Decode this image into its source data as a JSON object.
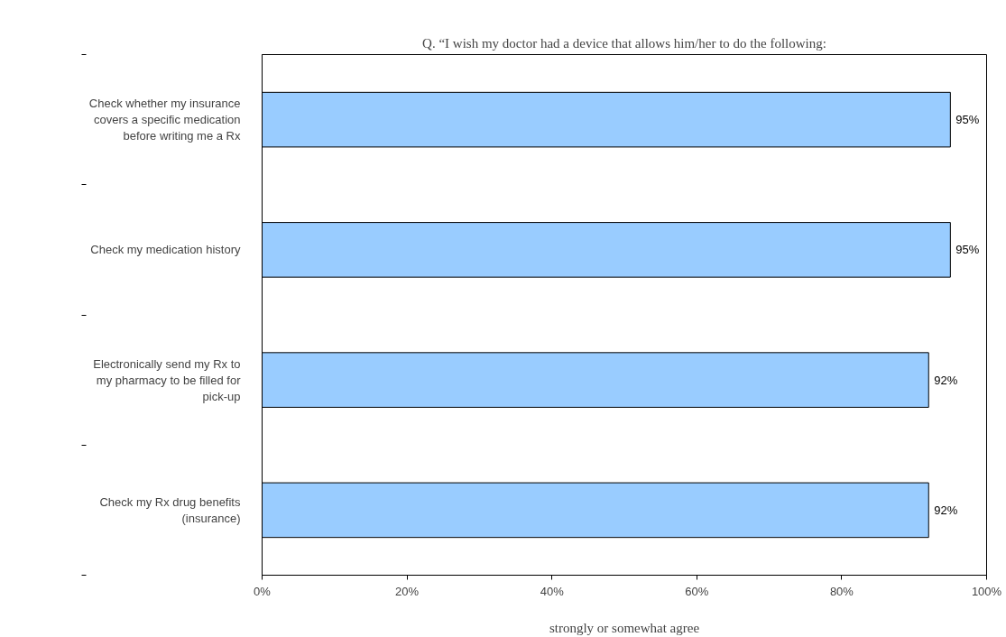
{
  "chart_data": {
    "type": "bar",
    "orientation": "horizontal",
    "title": "Q. “I wish my doctor had a device that allows him/her to do the following:",
    "xlabel": "strongly or somewhat agree",
    "categories": [
      "Check whether my insurance covers a specific medication before writing me a Rx",
      "Check my medication history",
      "Electronically send my Rx to my pharmacy to be filled for pick-up",
      "Check my Rx drug benefits (insurance)"
    ],
    "values": [
      95,
      95,
      92,
      92
    ],
    "value_labels": [
      "95%",
      "95%",
      "92%",
      "92%"
    ],
    "color": "#99ccff",
    "xlim": [
      0,
      100
    ],
    "xticks": [
      {
        "value": 0,
        "label": "0%"
      },
      {
        "value": 20,
        "label": "20%"
      },
      {
        "value": 40,
        "label": "40%"
      },
      {
        "value": 60,
        "label": "60%"
      },
      {
        "value": 80,
        "label": "80%"
      },
      {
        "value": 100,
        "label": "100%"
      }
    ],
    "grid": false
  }
}
